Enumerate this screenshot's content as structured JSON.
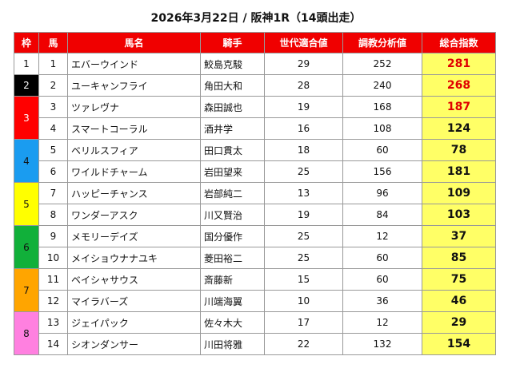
{
  "title": "2026年3月22日 / 阪神1R（14頭出走）",
  "headers": [
    "枠",
    "馬",
    "馬名",
    "騎手",
    "世代適合値",
    "調教分析値",
    "総合指数"
  ],
  "waku": [
    {
      "label": "1",
      "bg": "#ffffff",
      "fg": "#111111",
      "span": 1
    },
    {
      "label": "2",
      "bg": "#000000",
      "fg": "#ffffff",
      "span": 1
    },
    {
      "label": "3",
      "bg": "#ff0000",
      "fg": "#ffffff",
      "span": 2
    },
    {
      "label": "4",
      "bg": "#1a9cf0",
      "fg": "#111111",
      "span": 2
    },
    {
      "label": "5",
      "bg": "#ffff00",
      "fg": "#111111",
      "span": 2
    },
    {
      "label": "6",
      "bg": "#11b03a",
      "fg": "#111111",
      "span": 2
    },
    {
      "label": "7",
      "bg": "#ffa500",
      "fg": "#111111",
      "span": 2
    },
    {
      "label": "8",
      "bg": "#ff80e0",
      "fg": "#111111",
      "span": 2
    }
  ],
  "horses": [
    {
      "num": "1",
      "name": "エバーウインド",
      "jockey": "鮫島克駿",
      "gen": "29",
      "train": "252",
      "total": "281",
      "highlight": true
    },
    {
      "num": "2",
      "name": "ユーキャンフライ",
      "jockey": "角田大和",
      "gen": "28",
      "train": "240",
      "total": "268",
      "highlight": true
    },
    {
      "num": "3",
      "name": "ツァレヴナ",
      "jockey": "森田誠也",
      "gen": "19",
      "train": "168",
      "total": "187",
      "highlight": true
    },
    {
      "num": "4",
      "name": "スマートコーラル",
      "jockey": "酒井学",
      "gen": "16",
      "train": "108",
      "total": "124",
      "highlight": false
    },
    {
      "num": "5",
      "name": "ベリルスフィア",
      "jockey": "田口貫太",
      "gen": "18",
      "train": "60",
      "total": "78",
      "highlight": false
    },
    {
      "num": "6",
      "name": "ワイルドチャーム",
      "jockey": "岩田望来",
      "gen": "25",
      "train": "156",
      "total": "181",
      "highlight": false
    },
    {
      "num": "7",
      "name": "ハッピーチャンス",
      "jockey": "岩部純二",
      "gen": "13",
      "train": "96",
      "total": "109",
      "highlight": false
    },
    {
      "num": "8",
      "name": "ワンダーアスク",
      "jockey": "川又賢治",
      "gen": "19",
      "train": "84",
      "total": "103",
      "highlight": false
    },
    {
      "num": "9",
      "name": "メモリーデイズ",
      "jockey": "国分優作",
      "gen": "25",
      "train": "12",
      "total": "37",
      "highlight": false
    },
    {
      "num": "10",
      "name": "メイショウナナユキ",
      "jockey": "菱田裕二",
      "gen": "25",
      "train": "60",
      "total": "85",
      "highlight": false
    },
    {
      "num": "11",
      "name": "ベイシャサウス",
      "jockey": "斎藤新",
      "gen": "15",
      "train": "60",
      "total": "75",
      "highlight": false
    },
    {
      "num": "12",
      "name": "マイラバーズ",
      "jockey": "川端海翼",
      "gen": "10",
      "train": "36",
      "total": "46",
      "highlight": false
    },
    {
      "num": "13",
      "name": "ジェイパック",
      "jockey": "佐々木大",
      "gen": "17",
      "train": "12",
      "total": "29",
      "highlight": false
    },
    {
      "num": "14",
      "name": "シオンダンサー",
      "jockey": "川田将雅",
      "gen": "22",
      "train": "132",
      "total": "154",
      "highlight": false
    }
  ]
}
